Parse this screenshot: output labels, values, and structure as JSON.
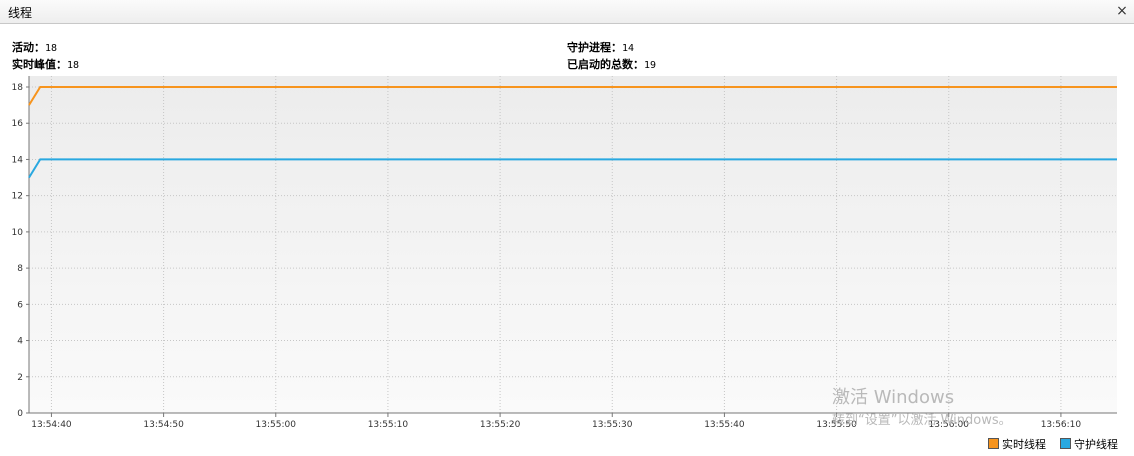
{
  "window": {
    "title": "线程",
    "close_glyph": "×"
  },
  "stats": {
    "live": {
      "label": "活动：",
      "value": "18"
    },
    "peak": {
      "label": "实时峰值：",
      "value": "18"
    },
    "daemon": {
      "label": "守护进程：",
      "value": "14"
    },
    "total": {
      "label": "已启动的总数：",
      "value": "19"
    }
  },
  "legend": {
    "live_label": "实时线程",
    "daemon_label": "守护线程",
    "live_color": "#f7941d",
    "daemon_color": "#29a8e0"
  },
  "watermark": {
    "line1": "激活 Windows",
    "line2": "转到“设置”以激活 Windows。"
  },
  "chart_data": {
    "type": "line",
    "x": [
      "13:54:38",
      "13:54:39",
      "13:56:15"
    ],
    "series": [
      {
        "name": "实时线程",
        "color": "#f7941d",
        "values": [
          17,
          18,
          18
        ]
      },
      {
        "name": "守护线程",
        "color": "#29a8e0",
        "values": [
          13,
          14,
          14
        ]
      }
    ],
    "xlim": [
      "13:54:38",
      "13:56:15"
    ],
    "ylim": [
      0,
      18
    ],
    "yticks": [
      "0",
      "2",
      "4",
      "6",
      "8",
      "10",
      "12",
      "14",
      "16",
      "18"
    ],
    "xticks": [
      "13:54:40",
      "13:54:50",
      "13:55:00",
      "13:55:10",
      "13:55:20",
      "13:55:30",
      "13:55:40",
      "13:55:50",
      "13:56:00",
      "13:56:10"
    ],
    "grid": true,
    "legend_position": "bottom-right"
  }
}
